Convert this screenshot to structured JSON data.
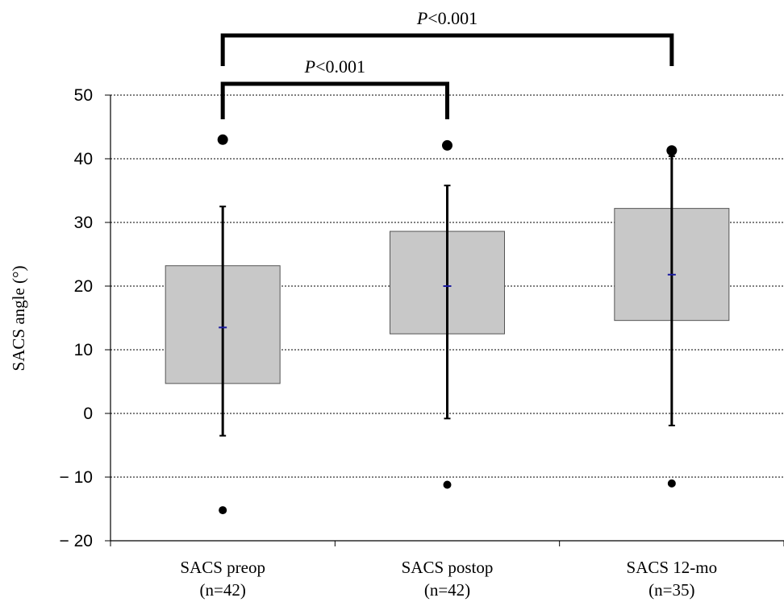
{
  "chart_data": {
    "type": "box",
    "ylabel": "SACS angle (°)",
    "ylim": [
      -20,
      50
    ],
    "yticks": [
      {
        "value": 50,
        "label": "50"
      },
      {
        "value": 40,
        "label": "40"
      },
      {
        "value": 30,
        "label": "30"
      },
      {
        "value": 20,
        "label": "20"
      },
      {
        "value": 10,
        "label": "10"
      },
      {
        "value": 0,
        "label": "0"
      },
      {
        "value": -10,
        "label": "− 10"
      },
      {
        "value": -20,
        "label": "− 20"
      }
    ],
    "grid": true,
    "categories": [
      {
        "name": "SACS preop",
        "n_label": "(n=42)",
        "q1": 4.7,
        "median": 13.5,
        "q3": 23.2,
        "whisker_low": -3.5,
        "whisker_high": 32.5,
        "outliers": [
          43.0,
          -15.2
        ]
      },
      {
        "name": "SACS postop",
        "n_label": "(n=42)",
        "q1": 12.5,
        "median": 20.0,
        "q3": 28.6,
        "whisker_low": -0.8,
        "whisker_high": 35.8,
        "outliers": [
          42.1,
          -11.2
        ]
      },
      {
        "name": "SACS 12-mo",
        "n_label": "(n=35)",
        "q1": 14.6,
        "median": 21.8,
        "q3": 32.2,
        "whisker_low": -1.9,
        "whisker_high": 40.4,
        "outliers": [
          41.3,
          -11.0
        ]
      }
    ],
    "significance": [
      {
        "from": 0,
        "to": 2,
        "p_symbol": "P",
        "p_text": "<0.001"
      },
      {
        "from": 0,
        "to": 1,
        "p_symbol": "P",
        "p_text": "<0.001"
      }
    ],
    "colors": {
      "box_fill": "#c8c8c8",
      "box_stroke": "#555555",
      "median": "#1a1aa0",
      "whisker": "#000000",
      "outlier": "#000000",
      "grid": "#000000"
    }
  }
}
